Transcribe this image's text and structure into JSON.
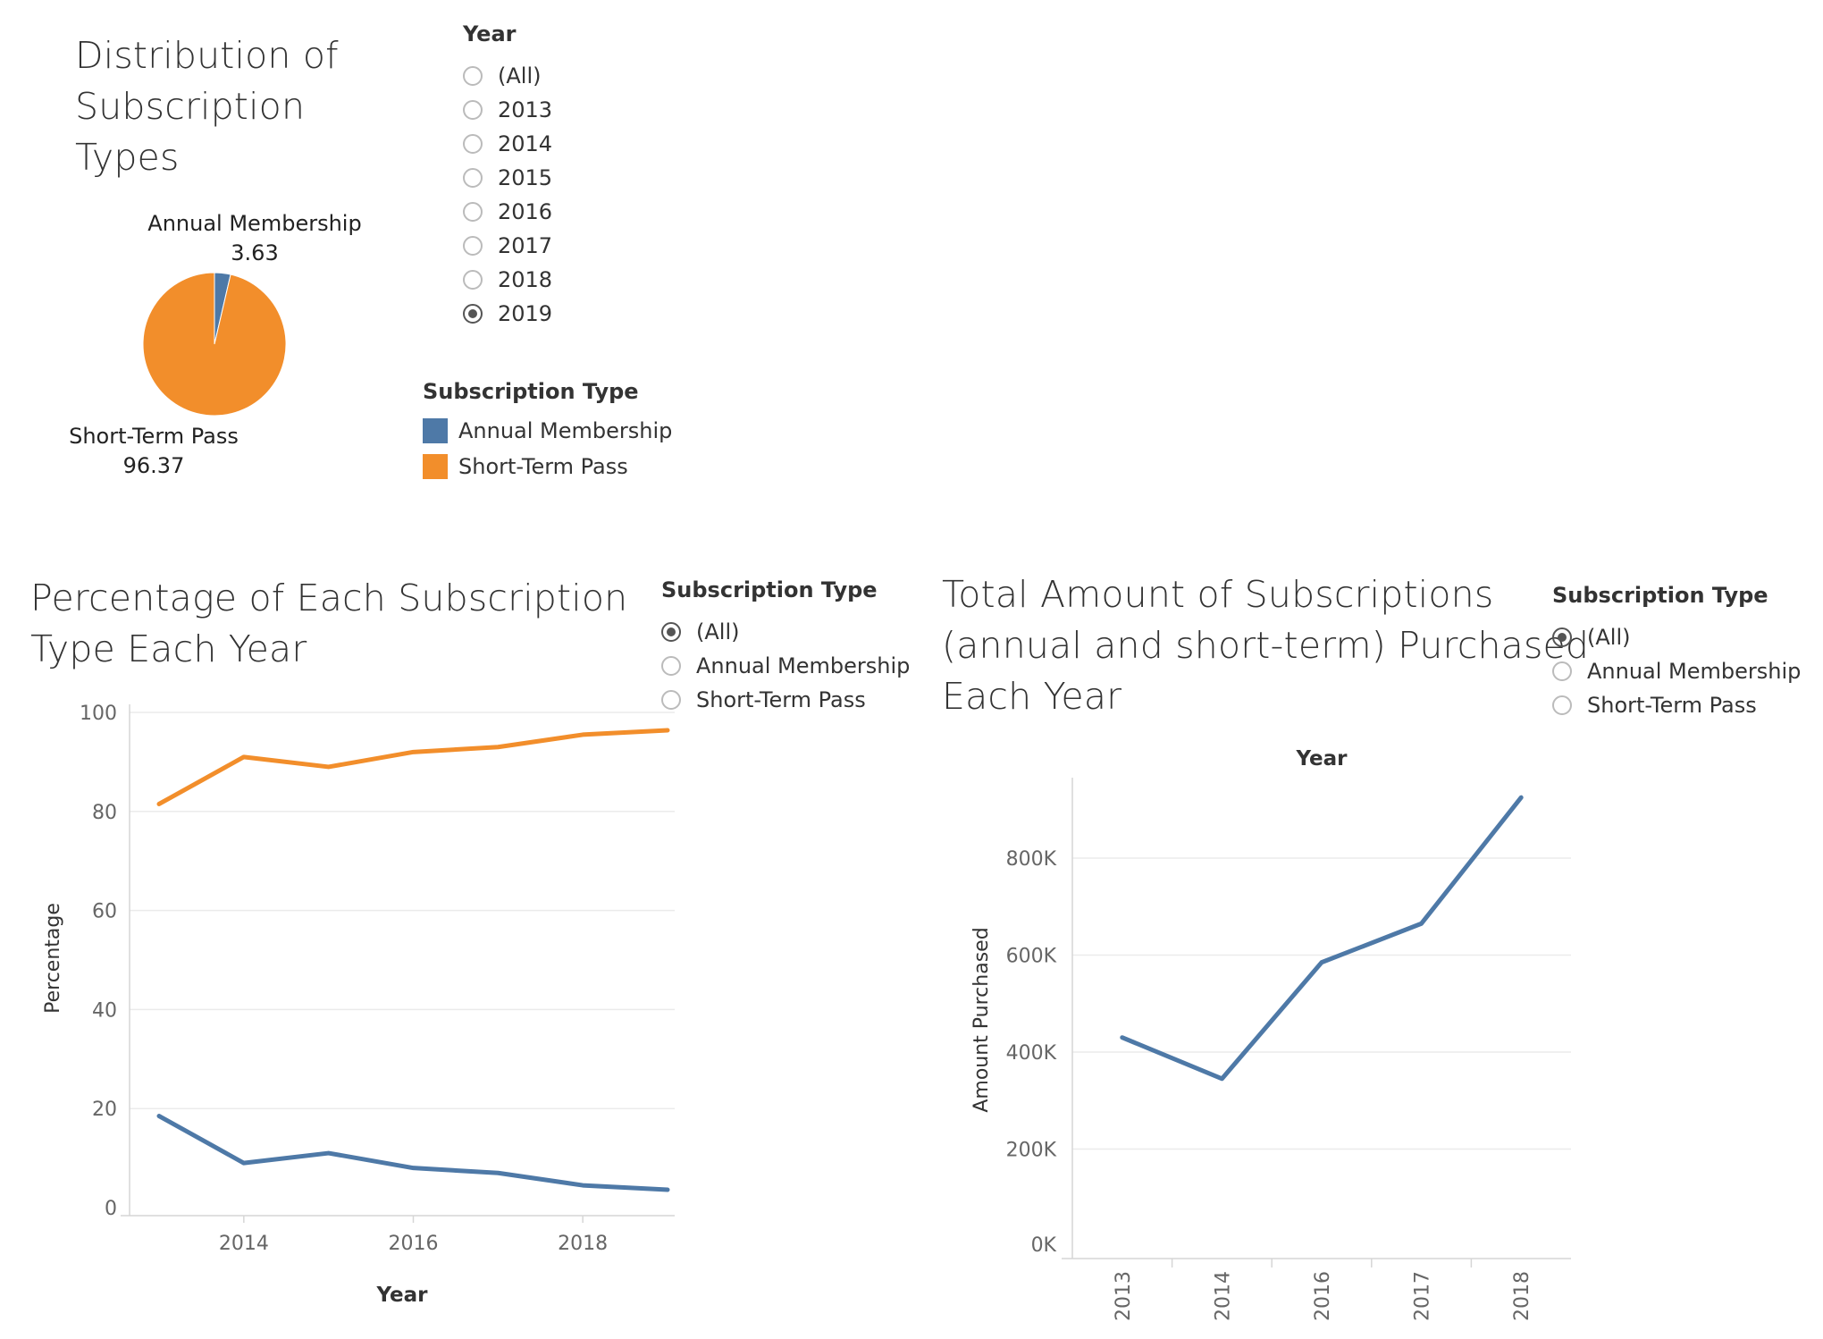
{
  "colors": {
    "annual": "#4e79a7",
    "short": "#f28e2b"
  },
  "pie_section": {
    "title_lines": [
      "Distribution of",
      "Subscription",
      "Types"
    ],
    "year_filter": {
      "title": "Year",
      "options": [
        "(All)",
        "2013",
        "2014",
        "2015",
        "2016",
        "2017",
        "2018",
        "2019"
      ],
      "selected": "2019"
    },
    "legend": {
      "title": "Subscription Type",
      "items": [
        {
          "label": "Annual Membership",
          "color": "#4e79a7"
        },
        {
          "label": "Short-Term Pass",
          "color": "#f28e2b"
        }
      ]
    },
    "slice_labels": {
      "annual_name": "Annual Membership",
      "annual_value": "3.63",
      "short_name": "Short-Term Pass",
      "short_value": "96.37"
    }
  },
  "pct_section": {
    "title_lines": [
      "Percentage of Each Subscription",
      "Type Each Year"
    ],
    "filter": {
      "title": "Subscription Type",
      "options": [
        "(All)",
        "Annual Membership",
        "Short-Term Pass"
      ],
      "selected": "(All)"
    }
  },
  "total_section": {
    "title_lines": [
      "Total Amount of Subscriptions",
      "(annual and short-term) Purchased",
      "Each Year"
    ],
    "filter": {
      "title": "Subscription Type",
      "options": [
        "(All)",
        "Annual Membership",
        "Short-Term Pass"
      ],
      "selected": "(All)"
    }
  },
  "chart_data": [
    {
      "type": "pie",
      "categories": [
        "Annual Membership",
        "Short-Term Pass"
      ],
      "values": [
        3.63,
        96.37
      ],
      "colors": [
        "#4e79a7",
        "#f28e2b"
      ]
    },
    {
      "type": "line",
      "title": "Percentage of Each Subscription Type Each Year",
      "xlabel": "Year",
      "ylabel": "Percentage",
      "x": [
        2013,
        2014,
        2015,
        2016,
        2017,
        2018,
        2019
      ],
      "xticks": [
        "2014",
        "2016",
        "2018"
      ],
      "yticks": [
        "0",
        "20",
        "40",
        "60",
        "80",
        "100"
      ],
      "ylim": [
        0,
        100
      ],
      "grid": true,
      "series": [
        {
          "name": "Short-Term Pass",
          "color": "#f28e2b",
          "values": [
            81.5,
            91,
            89,
            92,
            93,
            95.5,
            96.4
          ]
        },
        {
          "name": "Annual Membership",
          "color": "#4e79a7",
          "values": [
            18.5,
            9,
            11,
            8,
            7,
            4.5,
            3.6
          ]
        }
      ]
    },
    {
      "type": "line",
      "title": "Total Amount of Subscriptions (annual and short-term) Purchased Each Year",
      "xlabel": "Year",
      "ylabel": "Amount Purchased",
      "categories": [
        "2013",
        "2014",
        "2016",
        "2017",
        "2018"
      ],
      "yticks": [
        "0K",
        "200K",
        "400K",
        "600K",
        "800K"
      ],
      "ylim": [
        0,
        900000
      ],
      "grid": true,
      "series": [
        {
          "color": "#4e79a7",
          "values": [
            430000,
            345000,
            585000,
            665000,
            925000
          ]
        }
      ]
    }
  ]
}
